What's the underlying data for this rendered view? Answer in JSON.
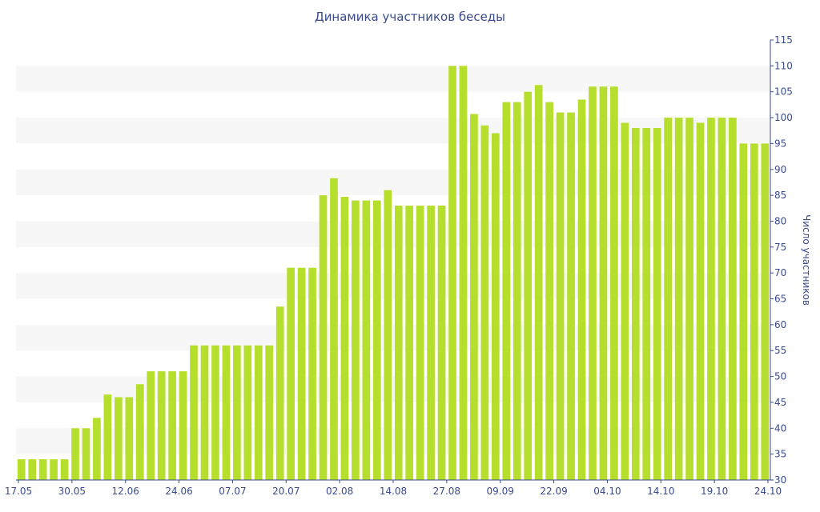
{
  "chart_data": {
    "type": "bar",
    "title": "Динамика участников беседы",
    "ylabel": "Число участников",
    "xlabel": "",
    "ylim": [
      30,
      115
    ],
    "yticks": [
      30,
      35,
      40,
      45,
      50,
      55,
      60,
      65,
      70,
      75,
      80,
      85,
      90,
      95,
      100,
      105,
      110,
      115
    ],
    "y_axis_side": "right",
    "grid": "alternating horizontal bands",
    "x_tick_labels": [
      "17.05",
      "30.05",
      "12.06",
      "24.06",
      "07.07",
      "20.07",
      "02.08",
      "14.08",
      "27.08",
      "09.09",
      "22.09",
      "04.10",
      "14.10",
      "19.10",
      "24.10"
    ],
    "values": [
      34,
      34,
      34,
      34,
      34,
      40,
      40,
      42,
      46.5,
      46,
      46,
      48.5,
      51,
      51,
      51,
      51,
      56,
      56,
      56,
      56,
      56,
      56,
      56,
      56,
      63.5,
      71,
      71,
      71,
      85,
      88.3,
      84.7,
      84,
      84,
      84,
      86,
      83,
      83,
      83,
      83,
      83,
      110,
      110,
      100.7,
      98.5,
      97,
      103,
      103,
      105,
      106.3,
      103,
      101,
      101,
      103.5,
      106,
      106,
      106,
      99,
      98,
      98,
      98,
      100,
      100,
      100,
      99,
      100,
      100,
      100,
      95,
      95,
      95
    ]
  },
  "colors": {
    "bar": "#b5df2c",
    "band": "#f7f7f7",
    "text": "#3a4a8c"
  }
}
